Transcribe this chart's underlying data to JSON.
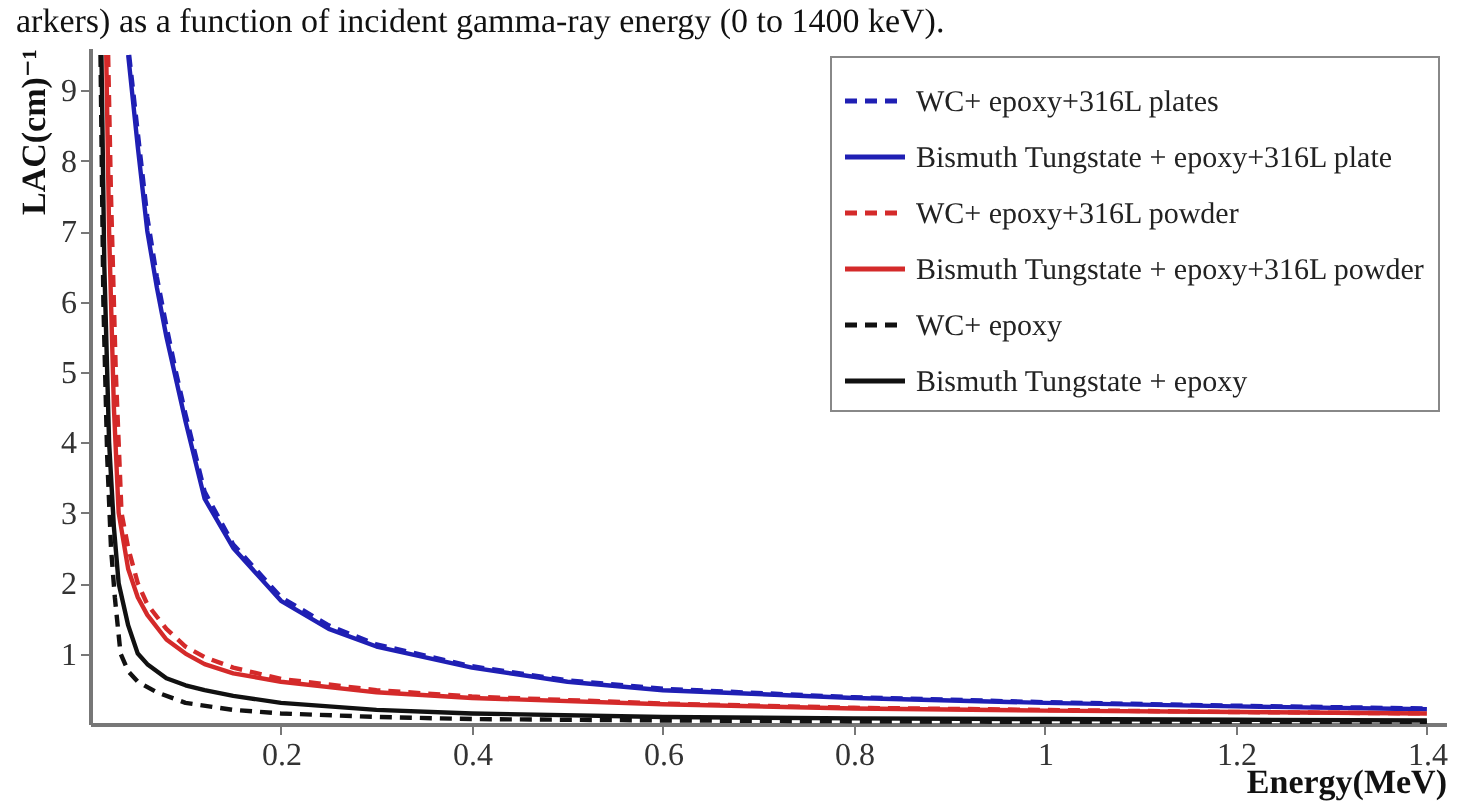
{
  "chart_data": {
    "type": "line",
    "xlabel": "Energy(MeV)",
    "ylabel": "LAC(cm)⁻¹",
    "annotations": [
      "arkers) as a function of incident gamma-ray energy (0 to 1400 keV)."
    ],
    "xlim": [
      0,
      1.42
    ],
    "ylim": [
      0,
      9.6
    ],
    "xticks": [
      0.2,
      0.4,
      0.6,
      0.8,
      1,
      1.2,
      1.4
    ],
    "yticks": [
      1,
      2,
      3,
      4,
      5,
      6,
      7,
      8,
      9
    ],
    "grid": false,
    "legend": "top right",
    "marker": "none",
    "series": [
      {
        "name": "WC+ epoxy+316L plates",
        "color": "#1f1fb4",
        "line_style": "dashed",
        "x": [
          0.041,
          0.05,
          0.06,
          0.07,
          0.08,
          0.09,
          0.1,
          0.12,
          0.15,
          0.2,
          0.25,
          0.3,
          0.4,
          0.5,
          0.6,
          0.8,
          1.0,
          1.2,
          1.4
        ],
        "values": [
          9.5,
          8.4,
          7.2,
          6.35,
          5.65,
          5.0,
          4.4,
          3.3,
          2.55,
          1.8,
          1.4,
          1.13,
          0.82,
          0.62,
          0.5,
          0.38,
          0.31,
          0.26,
          0.22
        ]
      },
      {
        "name": "Bismuth Tungstate + epoxy+316L plate",
        "color": "#1f1fb4",
        "line_style": "solid",
        "x": [
          0.04,
          0.05,
          0.06,
          0.07,
          0.08,
          0.09,
          0.1,
          0.12,
          0.15,
          0.2,
          0.25,
          0.3,
          0.4,
          0.5,
          0.6,
          0.8,
          1.0,
          1.2,
          1.4
        ],
        "values": [
          9.5,
          8.2,
          7.0,
          6.2,
          5.5,
          4.9,
          4.3,
          3.2,
          2.5,
          1.75,
          1.35,
          1.1,
          0.8,
          0.6,
          0.48,
          0.37,
          0.3,
          0.25,
          0.21
        ]
      },
      {
        "name": "WC+ epoxy+316L powder",
        "color": "#d42a2a",
        "line_style": "dashed",
        "x": [
          0.019,
          0.022,
          0.027,
          0.033,
          0.04,
          0.05,
          0.06,
          0.08,
          0.1,
          0.12,
          0.15,
          0.2,
          0.3,
          0.4,
          0.6,
          0.8,
          1.0,
          1.2,
          1.4
        ],
        "values": [
          9.5,
          7.5,
          5,
          3.0,
          2.5,
          2.0,
          1.7,
          1.35,
          1.1,
          0.95,
          0.8,
          0.64,
          0.48,
          0.39,
          0.29,
          0.23,
          0.2,
          0.17,
          0.15
        ]
      },
      {
        "name": "Bismuth Tungstate + epoxy+316L powder",
        "color": "#d42a2a",
        "line_style": "solid",
        "x": [
          0.017,
          0.02,
          0.025,
          0.03,
          0.04,
          0.05,
          0.06,
          0.08,
          0.1,
          0.12,
          0.15,
          0.2,
          0.3,
          0.4,
          0.6,
          0.8,
          1.0,
          1.2,
          1.4
        ],
        "values": [
          9.5,
          7,
          4.5,
          3.0,
          2.2,
          1.8,
          1.55,
          1.2,
          1.0,
          0.85,
          0.72,
          0.6,
          0.45,
          0.37,
          0.28,
          0.22,
          0.19,
          0.17,
          0.15
        ]
      },
      {
        "name": "WC+ epoxy",
        "color": "#111111",
        "line_style": "dashed",
        "x": [
          0.011,
          0.014,
          0.018,
          0.022,
          0.026,
          0.032,
          0.04,
          0.05,
          0.07,
          0.1,
          0.15,
          0.2,
          0.3,
          0.4,
          0.6,
          0.8,
          1.0,
          1.4
        ],
        "values": [
          9.5,
          6,
          3.8,
          2.5,
          1.8,
          1.0,
          0.75,
          0.6,
          0.45,
          0.3,
          0.2,
          0.15,
          0.1,
          0.07,
          0.05,
          0.04,
          0.03,
          0.02
        ]
      },
      {
        "name": "Bismuth Tungstate  + epoxy",
        "color": "#111111",
        "line_style": "solid",
        "x": [
          0.012,
          0.015,
          0.02,
          0.025,
          0.03,
          0.04,
          0.05,
          0.06,
          0.08,
          0.1,
          0.12,
          0.15,
          0.2,
          0.3,
          0.4,
          0.6,
          0.8,
          1.0,
          1.2,
          1.4
        ],
        "values": [
          9.5,
          6.5,
          4,
          2.8,
          2.0,
          1.4,
          1.0,
          0.85,
          0.65,
          0.55,
          0.48,
          0.4,
          0.3,
          0.2,
          0.15,
          0.1,
          0.08,
          0.07,
          0.06,
          0.05
        ]
      }
    ]
  }
}
